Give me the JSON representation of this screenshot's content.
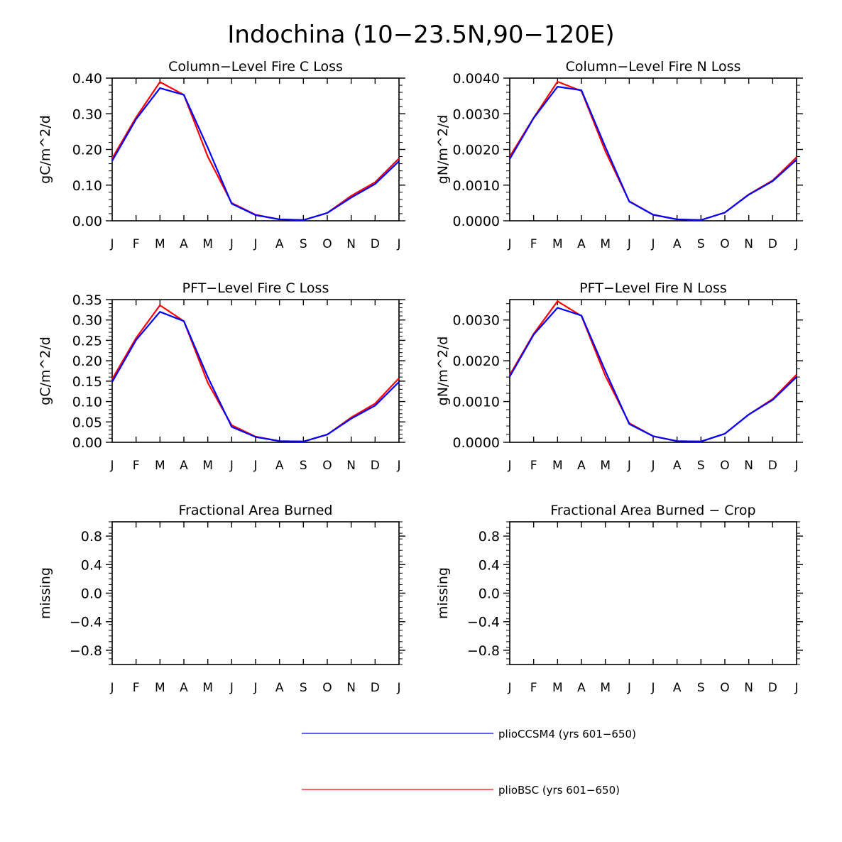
{
  "figure_title": "Indochina (10−23.5N,90−120E)",
  "months": [
    "J",
    "F",
    "M",
    "A",
    "M",
    "J",
    "J",
    "A",
    "S",
    "O",
    "N",
    "D",
    "J"
  ],
  "colors": {
    "pliocCSM4": "#0000ff",
    "plioBSC": "#ff0000",
    "frame": "#000000"
  },
  "legend": [
    {
      "label": "plioCCSM4 (yrs 601−650)",
      "color": "#0000ff"
    },
    {
      "label": "plioBSC (yrs 601−650)",
      "color": "#ff0000"
    }
  ],
  "chart_data": [
    {
      "type": "line",
      "title": "Column−Level Fire C Loss",
      "ylabel": "gC/m^2/d",
      "ylim": [
        0,
        0.4
      ],
      "yticks": [
        "0.00",
        "0.10",
        "0.20",
        "0.30",
        "0.40"
      ],
      "categories": [
        "J",
        "F",
        "M",
        "A",
        "M",
        "J",
        "J",
        "A",
        "S",
        "O",
        "N",
        "D",
        "J"
      ],
      "series": [
        {
          "name": "plioCCSM4 (yrs 601−650)",
          "color": "#0000ff",
          "values": [
            0.168,
            0.285,
            0.372,
            0.353,
            0.205,
            0.048,
            0.016,
            0.004,
            0.002,
            0.022,
            0.065,
            0.103,
            0.167
          ]
        },
        {
          "name": "plioBSC (yrs 601−650)",
          "color": "#ff0000",
          "values": [
            0.175,
            0.29,
            0.389,
            0.353,
            0.18,
            0.05,
            0.017,
            0.004,
            0.002,
            0.022,
            0.07,
            0.108,
            0.175
          ]
        }
      ]
    },
    {
      "type": "line",
      "title": "Column−Level Fire N Loss",
      "ylabel": "gN/m^2/d",
      "ylim": [
        0,
        0.004
      ],
      "yticks": [
        "0.0000",
        "0.0010",
        "0.0020",
        "0.0030",
        "0.0040"
      ],
      "categories": [
        "J",
        "F",
        "M",
        "A",
        "M",
        "J",
        "J",
        "A",
        "S",
        "O",
        "N",
        "D",
        "J"
      ],
      "series": [
        {
          "name": "plioCCSM4 (yrs 601−650)",
          "color": "#0000ff",
          "values": [
            0.00173,
            0.00288,
            0.00376,
            0.00366,
            0.00207,
            0.00054,
            0.00017,
            4e-05,
            2e-05,
            0.00023,
            0.00073,
            0.00111,
            0.00171
          ]
        },
        {
          "name": "plioBSC (yrs 601−650)",
          "color": "#ff0000",
          "values": [
            0.0018,
            0.00289,
            0.0039,
            0.00364,
            0.00195,
            0.00055,
            0.00017,
            4e-05,
            2e-05,
            0.00023,
            0.00074,
            0.00113,
            0.00178
          ]
        }
      ]
    },
    {
      "type": "line",
      "title": "PFT−Level Fire C Loss",
      "ylabel": "gC/m^2/d",
      "ylim": [
        0,
        0.35
      ],
      "yticks": [
        "0.00",
        "0.05",
        "0.10",
        "0.15",
        "0.20",
        "0.25",
        "0.30",
        "0.35"
      ],
      "categories": [
        "J",
        "F",
        "M",
        "A",
        "M",
        "J",
        "J",
        "A",
        "S",
        "O",
        "N",
        "D",
        "J"
      ],
      "series": [
        {
          "name": "plioCCSM4 (yrs 601−650)",
          "color": "#0000ff",
          "values": [
            0.148,
            0.251,
            0.32,
            0.297,
            0.16,
            0.038,
            0.013,
            0.003,
            0.002,
            0.019,
            0.058,
            0.09,
            0.148
          ]
        },
        {
          "name": "plioBSC (yrs 601−650)",
          "color": "#ff0000",
          "values": [
            0.155,
            0.256,
            0.336,
            0.297,
            0.146,
            0.042,
            0.014,
            0.003,
            0.002,
            0.019,
            0.061,
            0.095,
            0.157
          ]
        }
      ]
    },
    {
      "type": "line",
      "title": "PFT−Level Fire N Loss",
      "ylabel": "gN/m^2/d",
      "ylim": [
        0,
        0.0035
      ],
      "yticks": [
        "0.0000",
        "0.0010",
        "0.0020",
        "0.0030"
      ],
      "categories": [
        "J",
        "F",
        "M",
        "A",
        "M",
        "J",
        "J",
        "A",
        "S",
        "O",
        "N",
        "D",
        "J"
      ],
      "series": [
        {
          "name": "plioCCSM4 (yrs 601−650)",
          "color": "#0000ff",
          "values": [
            0.00161,
            0.00264,
            0.0033,
            0.00311,
            0.00175,
            0.00045,
            0.00015,
            3e-05,
            2e-05,
            0.00021,
            0.00068,
            0.00104,
            0.0016
          ]
        },
        {
          "name": "plioBSC (yrs 601−650)",
          "color": "#ff0000",
          "values": [
            0.00165,
            0.00266,
            0.00346,
            0.0031,
            0.00163,
            0.00047,
            0.00015,
            3e-05,
            2e-05,
            0.00021,
            0.00068,
            0.00106,
            0.00166
          ]
        }
      ]
    },
    {
      "type": "line",
      "title": "Fractional Area Burned",
      "ylabel": "missing",
      "ylim": [
        -1,
        1
      ],
      "yticks": [
        "−0.8",
        "−0.4",
        "0.0",
        "0.4",
        "0.8"
      ],
      "categories": [
        "J",
        "F",
        "M",
        "A",
        "M",
        "J",
        "J",
        "A",
        "S",
        "O",
        "N",
        "D",
        "J"
      ],
      "series": []
    },
    {
      "type": "line",
      "title": "Fractional Area Burned − Crop",
      "ylabel": "missing",
      "ylim": [
        -1,
        1
      ],
      "yticks": [
        "−0.8",
        "−0.4",
        "0.0",
        "0.4",
        "0.8"
      ],
      "categories": [
        "J",
        "F",
        "M",
        "A",
        "M",
        "J",
        "J",
        "A",
        "S",
        "O",
        "N",
        "D",
        "J"
      ],
      "series": []
    }
  ]
}
